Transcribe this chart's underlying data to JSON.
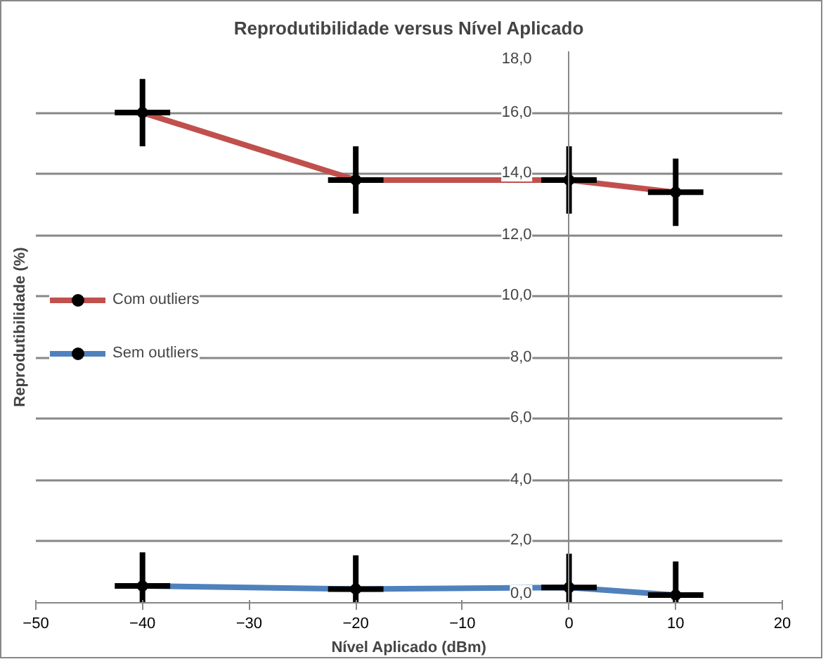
{
  "chart_data": {
    "type": "line",
    "title": "Reprodutibilidade versus Nível Aplicado",
    "xlabel": "Nível Aplicado (dBm)",
    "ylabel": "Reprodutibilidade (%)",
    "x": [
      -40,
      -20,
      0,
      10
    ],
    "series": [
      {
        "name": "Com outliers",
        "color": "#c0504d",
        "values": [
          16.0,
          13.8,
          13.8,
          13.4
        ],
        "errors": [
          1.1,
          1.1,
          1.1,
          1.1
        ],
        "xerrors": [
          2.6,
          2.6,
          2.6,
          2.6
        ]
      },
      {
        "name": "Sem outliers",
        "color": "#4f81bd",
        "values": [
          0.55,
          0.45,
          0.5,
          0.25
        ],
        "errors": [
          1.1,
          1.1,
          1.1,
          1.1
        ],
        "xerrors": [
          2.6,
          2.6,
          2.6,
          2.6
        ]
      }
    ],
    "xlim": [
      -50,
      20
    ],
    "xticks": [
      -50,
      -40,
      -30,
      -20,
      -10,
      0,
      10,
      20
    ],
    "ylim": [
      0,
      18
    ],
    "yticks": [
      {
        "value": 0,
        "label": "0,0"
      },
      {
        "value": 2,
        "label": "2,0"
      },
      {
        "value": 4,
        "label": "4,0"
      },
      {
        "value": 6,
        "label": "6,0"
      },
      {
        "value": 8,
        "label": "8,0"
      },
      {
        "value": 10,
        "label": "10,0"
      },
      {
        "value": 12,
        "label": "12,0"
      },
      {
        "value": 14,
        "label": "14,0"
      },
      {
        "value": 16,
        "label": "16,0"
      },
      {
        "value": 18,
        "label": "18,0"
      }
    ],
    "grid": "y",
    "legend": "left",
    "marker": "circle",
    "line_style": "solid"
  }
}
